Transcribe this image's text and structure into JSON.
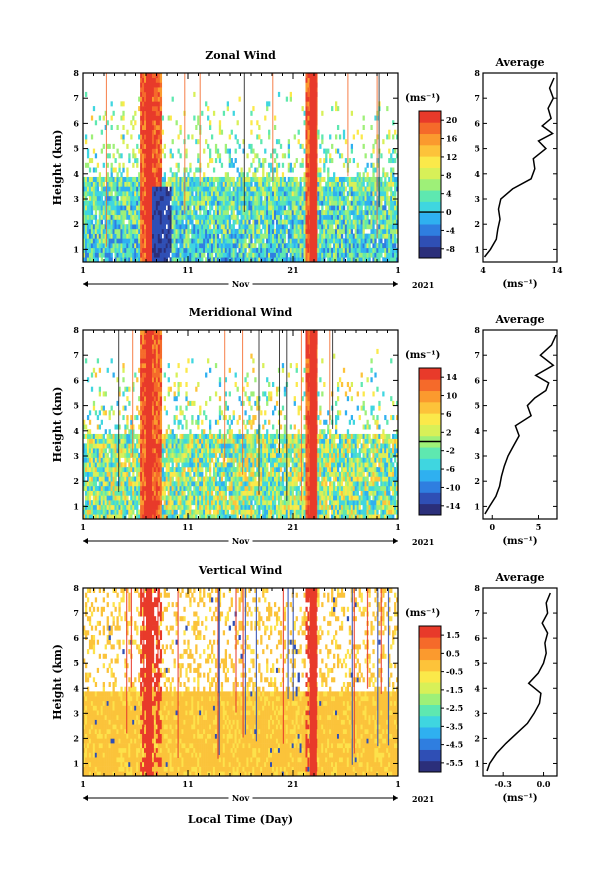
{
  "chart_data": [
    {
      "type": "heatmap",
      "title": "Zonal Wind",
      "ylabel": "Height (km)",
      "ylim": [
        0.5,
        8
      ],
      "yticks": [
        "1",
        "2",
        "3",
        "4",
        "5",
        "6",
        "7",
        "8"
      ],
      "xticks": [
        "1",
        "11",
        "21",
        "1"
      ],
      "xlabel": "",
      "month": "Nov",
      "year": "2021",
      "colorbar_unit": "(ms⁻¹)",
      "colorbar_ticks": [
        "20",
        "16",
        "12",
        "8",
        "4",
        "0",
        "-4",
        "-8"
      ],
      "colorbar_range": [
        -10,
        22
      ],
      "average_title": "Average",
      "average_xticks": [
        "4",
        "14"
      ],
      "average_xlim": [
        4,
        14
      ],
      "average_unit": "(ms⁻¹)",
      "average_profile": {
        "height": [
          0.7,
          1.0,
          1.4,
          1.8,
          2.2,
          2.6,
          3.0,
          3.4,
          3.8,
          4.2,
          4.6,
          5.0,
          5.3,
          5.6,
          5.9,
          6.2,
          6.6,
          7.0,
          7.4,
          7.8
        ],
        "value": [
          4.2,
          5.0,
          5.8,
          6.0,
          6.3,
          6.1,
          6.4,
          8.0,
          10.5,
          11.0,
          10.8,
          12.5,
          11.5,
          13.4,
          12.0,
          13.2,
          12.8,
          13.5,
          13.0,
          13.6
        ]
      }
    },
    {
      "type": "heatmap",
      "title": "Meridional Wind",
      "ylabel": "Height (km)",
      "ylim": [
        0.5,
        8
      ],
      "yticks": [
        "1",
        "2",
        "3",
        "4",
        "5",
        "6",
        "7",
        "8"
      ],
      "xticks": [
        "1",
        "11",
        "21",
        "1"
      ],
      "xlabel": "",
      "month": "Nov",
      "year": "2021",
      "colorbar_unit": "(ms⁻¹)",
      "colorbar_ticks": [
        "14",
        "10",
        "6",
        "2",
        "-2",
        "-6",
        "-10",
        "-14"
      ],
      "colorbar_range": [
        -16,
        16
      ],
      "average_title": "Average",
      "average_xticks": [
        "0",
        "5"
      ],
      "average_xlim": [
        -1,
        7
      ],
      "average_unit": "(ms⁻¹)",
      "average_profile": {
        "height": [
          0.7,
          1.0,
          1.4,
          1.8,
          2.2,
          2.6,
          3.0,
          3.4,
          3.8,
          4.2,
          4.6,
          5.0,
          5.3,
          5.6,
          5.9,
          6.2,
          6.6,
          7.0,
          7.4,
          7.8
        ],
        "value": [
          -0.8,
          -0.3,
          0.4,
          0.8,
          1.0,
          1.3,
          1.7,
          2.3,
          2.9,
          2.5,
          4.2,
          3.8,
          4.6,
          5.8,
          6.1,
          4.7,
          6.6,
          5.2,
          6.4,
          6.9
        ]
      }
    },
    {
      "type": "heatmap",
      "title": "Vertical Wind",
      "ylabel": "Height (km)",
      "ylim": [
        0.5,
        8
      ],
      "yticks": [
        "1",
        "2",
        "3",
        "4",
        "5",
        "6",
        "7",
        "8"
      ],
      "xticks": [
        "1",
        "11",
        "21",
        "1"
      ],
      "xlabel": "Local Time (Day)",
      "month": "Nov",
      "year": "2021",
      "colorbar_unit": "(ms⁻¹)",
      "colorbar_ticks": [
        "1.5",
        "0.5",
        "-0.5",
        "-1.5",
        "-2.5",
        "-3.5",
        "-4.5",
        "-5.5"
      ],
      "colorbar_range": [
        -6,
        2
      ],
      "average_title": "Average",
      "average_xticks": [
        "-0.3",
        "0.0"
      ],
      "average_xlim": [
        -0.45,
        0.1
      ],
      "average_unit": "(ms⁻¹)",
      "average_profile": {
        "height": [
          0.7,
          1.0,
          1.4,
          1.8,
          2.2,
          2.6,
          3.0,
          3.4,
          3.8,
          4.2,
          4.6,
          5.0,
          5.4,
          5.8,
          6.2,
          6.6,
          7.0,
          7.4,
          7.8
        ],
        "value": [
          -0.42,
          -0.4,
          -0.35,
          -0.28,
          -0.2,
          -0.12,
          -0.07,
          -0.03,
          -0.02,
          -0.11,
          -0.04,
          0.0,
          0.02,
          0.01,
          0.03,
          -0.01,
          0.03,
          0.02,
          0.05
        ]
      }
    }
  ]
}
